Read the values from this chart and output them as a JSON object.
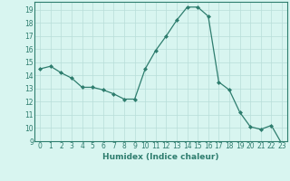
{
  "x": [
    0,
    1,
    2,
    3,
    4,
    5,
    6,
    7,
    8,
    9,
    10,
    11,
    12,
    13,
    14,
    15,
    16,
    17,
    18,
    19,
    20,
    21,
    22,
    23
  ],
  "y": [
    14.5,
    14.7,
    14.2,
    13.8,
    13.1,
    13.1,
    12.9,
    12.6,
    12.2,
    12.2,
    14.5,
    15.9,
    17.0,
    18.2,
    19.2,
    19.2,
    18.5,
    13.5,
    12.9,
    11.2,
    10.1,
    9.9,
    10.2,
    8.8
  ],
  "line_color": "#2e7d6e",
  "marker": "D",
  "marker_size": 2.0,
  "bg_color": "#d8f5f0",
  "grid_color": "#b8ddd8",
  "xlabel": "Humidex (Indice chaleur)",
  "ylim": [
    9,
    19.6
  ],
  "xlim": [
    -0.5,
    23.5
  ],
  "yticks": [
    9,
    10,
    11,
    12,
    13,
    14,
    15,
    16,
    17,
    18,
    19
  ],
  "xticks": [
    0,
    1,
    2,
    3,
    4,
    5,
    6,
    7,
    8,
    9,
    10,
    11,
    12,
    13,
    14,
    15,
    16,
    17,
    18,
    19,
    20,
    21,
    22,
    23
  ],
  "tick_fontsize": 5.5,
  "xlabel_fontsize": 6.5,
  "spine_color": "#2e7d6e"
}
